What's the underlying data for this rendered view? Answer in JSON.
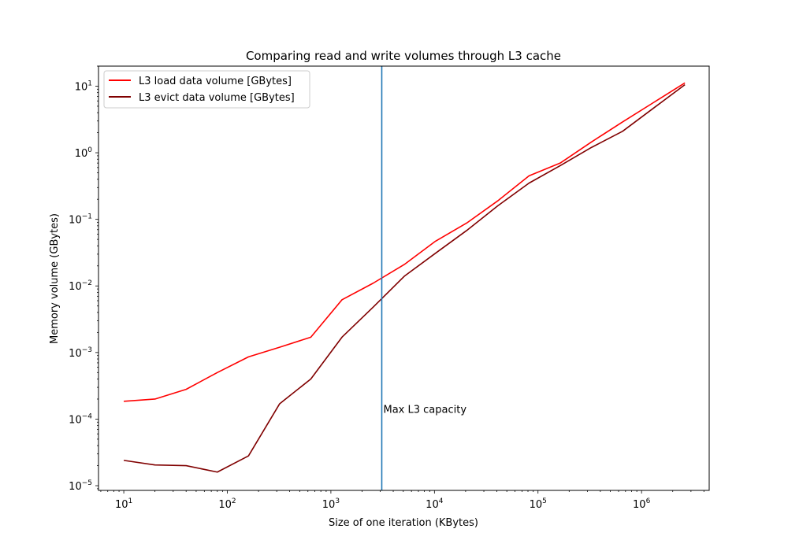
{
  "chart_data": {
    "type": "line",
    "title": "Comparing read and write volumes through L3 cache",
    "xlabel": "Size of one iteration (KBytes)",
    "ylabel": "Memory volume (GBytes)",
    "xscale": "log",
    "yscale": "log",
    "xlim": [
      5.7,
      4500000
    ],
    "ylim": [
      8.5e-06,
      20
    ],
    "grid": false,
    "legend_position": "top-left",
    "x_ticks": [
      {
        "value": 10,
        "base": "10",
        "exp": "1"
      },
      {
        "value": 100,
        "base": "10",
        "exp": "2"
      },
      {
        "value": 1000,
        "base": "10",
        "exp": "3"
      },
      {
        "value": 10000,
        "base": "10",
        "exp": "4"
      },
      {
        "value": 100000,
        "base": "10",
        "exp": "5"
      },
      {
        "value": 1000000,
        "base": "10",
        "exp": "6"
      }
    ],
    "y_ticks": [
      {
        "value": 1e-05,
        "base": "10",
        "exp": "−5"
      },
      {
        "value": 0.0001,
        "base": "10",
        "exp": "−4"
      },
      {
        "value": 0.001,
        "base": "10",
        "exp": "−3"
      },
      {
        "value": 0.01,
        "base": "10",
        "exp": "−2"
      },
      {
        "value": 0.1,
        "base": "10",
        "exp": "−1"
      },
      {
        "value": 1,
        "base": "10",
        "exp": "0"
      },
      {
        "value": 10,
        "base": "10",
        "exp": "1"
      }
    ],
    "x": [
      10,
      20,
      40,
      80,
      160,
      320,
      640,
      1280,
      2560,
      5120,
      10240,
      20480,
      40960,
      81920,
      163840,
      327680,
      655360,
      1310720,
      2621440
    ],
    "series": [
      {
        "name": "L3 load data volume [GBytes]",
        "color": "#ff0000",
        "values": [
          0.000185,
          0.0002,
          0.00028,
          0.0005,
          0.00086,
          0.0012,
          0.0017,
          0.0062,
          0.011,
          0.021,
          0.047,
          0.088,
          0.19,
          0.45,
          0.7,
          1.45,
          2.9,
          5.7,
          11.2
        ]
      },
      {
        "name": "L3 evict data volume [GBytes]",
        "color": "#800000",
        "values": [
          2.4e-05,
          2.05e-05,
          2e-05,
          1.6e-05,
          2.8e-05,
          0.00017,
          0.0004,
          0.0017,
          0.0048,
          0.014,
          0.031,
          0.068,
          0.16,
          0.35,
          0.64,
          1.2,
          2.1,
          4.7,
          10.5
        ]
      }
    ],
    "annotations": [
      {
        "type": "vline",
        "x": 3100,
        "color": "#1f77b4",
        "label": "Max L3 capacity",
        "label_y": 0.000105
      }
    ]
  }
}
